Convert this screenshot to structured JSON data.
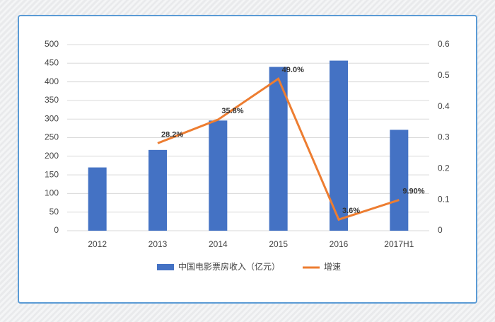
{
  "chart_data": {
    "type": "bar_line",
    "categories": [
      "2012",
      "2013",
      "2014",
      "2015",
      "2016",
      "2017H1"
    ],
    "series": [
      {
        "name": "中国电影票房收入（亿元）",
        "type": "bar",
        "color": "#4472c4",
        "values": [
          170,
          217,
          296,
          440,
          457,
          271
        ]
      },
      {
        "name": "增速",
        "type": "line",
        "axis": "y2",
        "color": "#ed7d31",
        "values": [
          null,
          0.282,
          0.358,
          0.49,
          0.036,
          0.099
        ],
        "value_labels": [
          null,
          "28.2%",
          "35.8%",
          "49.0%",
          "3.6%",
          "9.90%"
        ]
      }
    ],
    "ylim": [
      0,
      500
    ],
    "yticks": [
      0,
      50,
      100,
      150,
      200,
      250,
      300,
      350,
      400,
      450,
      500
    ],
    "y2lim": [
      0,
      0.6
    ],
    "y2ticks": [
      0,
      0.1,
      0.2,
      0.3,
      0.4,
      0.5,
      0.6
    ],
    "grid": true,
    "legend": "bottom"
  }
}
